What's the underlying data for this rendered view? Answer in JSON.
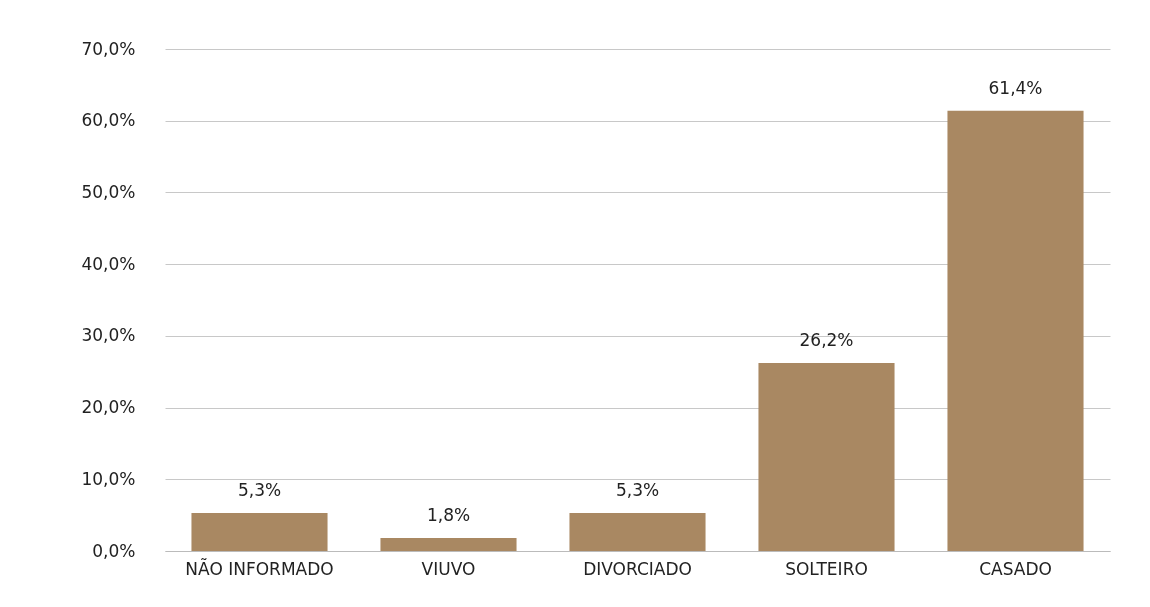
{
  "chart_data": {
    "type": "bar",
    "categories": [
      "NÃO INFORMADO",
      "VIUVO",
      "DIVORCIADO",
      "SOLTEIRO",
      "CASADO"
    ],
    "values": [
      5.3,
      1.8,
      5.3,
      26.2,
      61.4
    ],
    "value_labels": [
      "5,3%",
      "1,8%",
      "5,3%",
      "26,2%",
      "61,4%"
    ],
    "color": "#a98862",
    "ylim": [
      0,
      70
    ],
    "yticks": [
      {
        "value": 0,
        "label": "0,0%"
      },
      {
        "value": 10,
        "label": "10,0%"
      },
      {
        "value": 20,
        "label": "20,0%"
      },
      {
        "value": 30,
        "label": "30,0%"
      },
      {
        "value": 40,
        "label": "40,0%"
      },
      {
        "value": 50,
        "label": "50,0%"
      },
      {
        "value": 60,
        "label": "60,0%"
      },
      {
        "value": 70,
        "label": "70,0%"
      }
    ],
    "grid": "y"
  }
}
